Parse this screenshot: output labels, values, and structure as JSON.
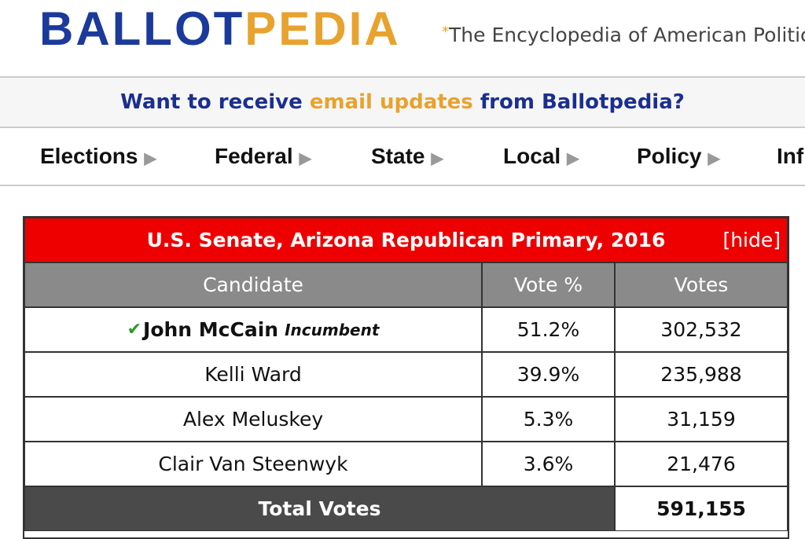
{
  "header": {
    "logo_left": "BALLOT",
    "logo_right": "PEDIA",
    "tagline": "The Encyclopedia of American Politic"
  },
  "banner": {
    "before": "Want to receive ",
    "highlight": "email updates",
    "after": " from Ballotpedia?"
  },
  "nav": [
    "Elections",
    "Federal",
    "State",
    "Local",
    "Policy",
    "Inf"
  ],
  "table": {
    "title": "U.S. Senate, Arizona Republican Primary, 2016",
    "hide": "[hide]",
    "columns": [
      "Candidate",
      "Vote %",
      "Votes"
    ],
    "rows": [
      [
        "John McCain",
        "51.2%",
        "302,532"
      ],
      [
        "Kelli Ward",
        "39.9%",
        "235,988"
      ],
      [
        "Alex Meluskey",
        "5.3%",
        "31,159"
      ],
      [
        "Clair Van Steenwyk",
        "3.6%",
        "21,476"
      ]
    ],
    "incumbent": "Incumbent",
    "total": {
      "label": "Total Votes",
      "value": "591,155"
    }
  }
}
